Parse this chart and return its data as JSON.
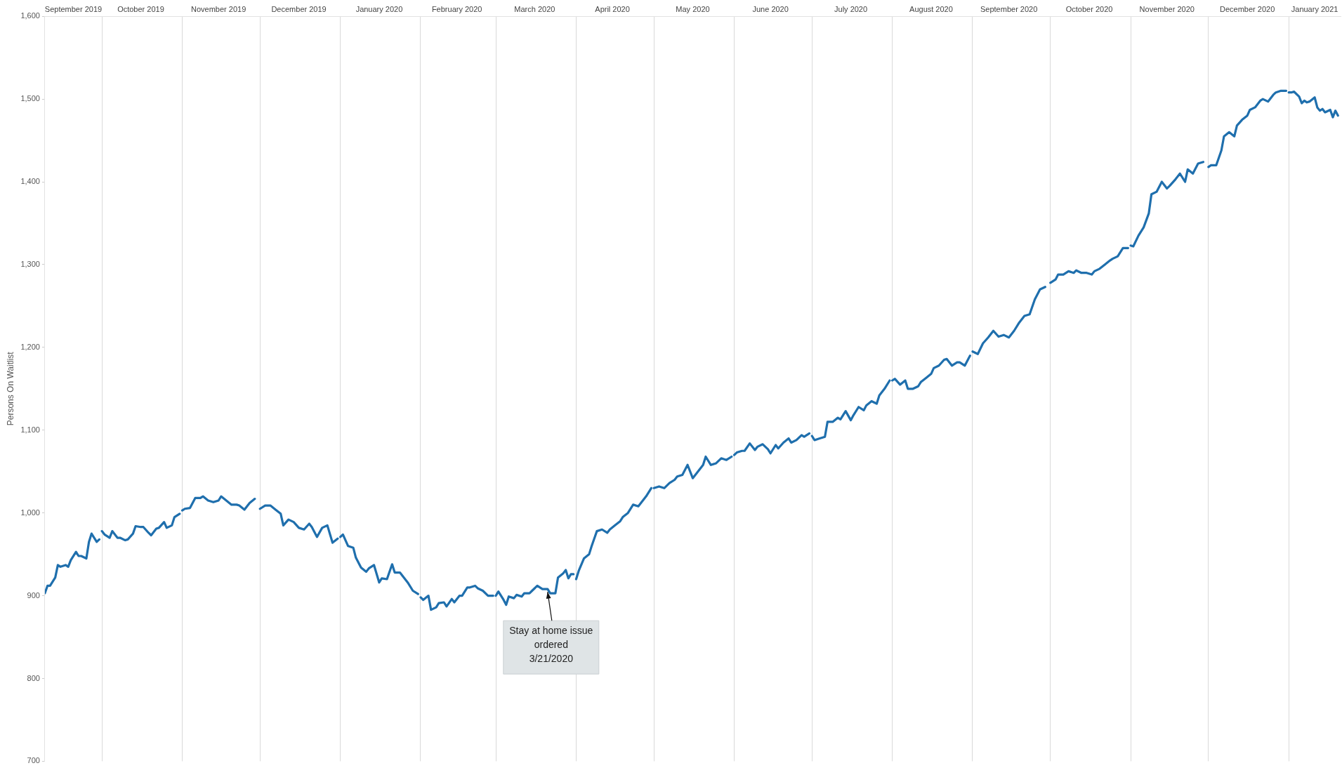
{
  "chart_data": {
    "type": "line",
    "ylabel": "Persons On Waitlist",
    "xlim": [
      "2019-09-09",
      "2021-01-21"
    ],
    "ylim": [
      700,
      1600
    ],
    "yticks": [
      700,
      800,
      900,
      {
        "value": 1000,
        "label": "1,000"
      },
      {
        "value": 1100,
        "label": "1,100"
      },
      {
        "value": 1200,
        "label": "1,200"
      },
      {
        "value": 1300,
        "label": "1,300"
      },
      {
        "value": 1400,
        "label": "1,400"
      },
      {
        "value": 1500,
        "label": "1,500"
      },
      {
        "value": 1600,
        "label": "1,600"
      }
    ],
    "xticks": [
      {
        "value": "2019-09-20",
        "label": "September 2019"
      },
      {
        "value": "2019-10-01",
        "label": null
      },
      {
        "value": "2019-10-16",
        "label": "October 2019"
      },
      {
        "value": "2019-11-01",
        "label": null
      },
      {
        "value": "2019-11-15",
        "label": "November 2019"
      },
      {
        "value": "2019-12-01",
        "label": null
      },
      {
        "value": "2019-12-16",
        "label": "December 2019"
      },
      {
        "value": "2020-01-01",
        "label": null
      },
      {
        "value": "2020-01-16",
        "label": "January 2020"
      },
      {
        "value": "2020-02-01",
        "label": null
      },
      {
        "value": "2020-02-15",
        "label": "February 2020"
      },
      {
        "value": "2020-03-01",
        "label": null
      },
      {
        "value": "2020-03-16",
        "label": "March 2020"
      },
      {
        "value": "2020-04-01",
        "label": null
      },
      {
        "value": "2020-04-15",
        "label": "April 2020"
      },
      {
        "value": "2020-05-01",
        "label": null
      },
      {
        "value": "2020-05-16",
        "label": "May 2020"
      },
      {
        "value": "2020-06-01",
        "label": null
      },
      {
        "value": "2020-06-15",
        "label": "June 2020"
      },
      {
        "value": "2020-07-01",
        "label": null
      },
      {
        "value": "2020-07-16",
        "label": "July 2020"
      },
      {
        "value": "2020-08-01",
        "label": null
      },
      {
        "value": "2020-08-16",
        "label": "August 2020"
      },
      {
        "value": "2020-09-01",
        "label": null
      },
      {
        "value": "2020-09-15",
        "label": "September 2020"
      },
      {
        "value": "2020-10-01",
        "label": null
      },
      {
        "value": "2020-10-16",
        "label": "October 2020"
      },
      {
        "value": "2020-11-01",
        "label": null
      },
      {
        "value": "2020-11-15",
        "label": "November 2020"
      },
      {
        "value": "2020-12-01",
        "label": null
      },
      {
        "value": "2020-12-16",
        "label": "December 2020"
      },
      {
        "value": "2021-01-01",
        "label": null
      },
      {
        "value": "2021-01-11",
        "label": "January 2021"
      }
    ],
    "grid": "x",
    "line_style": "solid",
    "marker": "none",
    "series": [
      {
        "color": "#1f6fad",
        "x": [
          "2019-09-09",
          "2019-09-10",
          "2019-09-11",
          "2019-09-13",
          "2019-09-14",
          "2019-09-15",
          "2019-09-17",
          "2019-09-18",
          "2019-09-19",
          "2019-09-21",
          "2019-09-22",
          "2019-09-23",
          "2019-09-25",
          "2019-09-26",
          "2019-09-27",
          "2019-09-29",
          "2019-09-30",
          "2019-09-30T20:00",
          "2019-10-01",
          "2019-10-02",
          "2019-10-04",
          "2019-10-05",
          "2019-10-07",
          "2019-10-08",
          "2019-10-10",
          "2019-10-11",
          "2019-10-13",
          "2019-10-14",
          "2019-10-16",
          "2019-10-17",
          "2019-10-19",
          "2019-10-20",
          "2019-10-22",
          "2019-10-23",
          "2019-10-25",
          "2019-10-26",
          "2019-10-28",
          "2019-10-29",
          "2019-10-31",
          "2019-10-31T20:00",
          "2019-11-01",
          "2019-11-02",
          "2019-11-04",
          "2019-11-06",
          "2019-11-08",
          "2019-11-09",
          "2019-11-11",
          "2019-11-13",
          "2019-11-15",
          "2019-11-16",
          "2019-11-18",
          "2019-11-20",
          "2019-11-22",
          "2019-11-23",
          "2019-11-25",
          "2019-11-27",
          "2019-11-29",
          "2019-11-30T20:00",
          "2019-12-01",
          "2019-12-03",
          "2019-12-05",
          "2019-12-07",
          "2019-12-09",
          "2019-12-10",
          "2019-12-12",
          "2019-12-14",
          "2019-12-16",
          "2019-12-18",
          "2019-12-20",
          "2019-12-21",
          "2019-12-23",
          "2019-12-25",
          "2019-12-27",
          "2019-12-29",
          "2019-12-31",
          "2019-12-31T20:00",
          "2020-01-01",
          "2020-01-02",
          "2020-01-04",
          "2020-01-06",
          "2020-01-07",
          "2020-01-09",
          "2020-01-11",
          "2020-01-12",
          "2020-01-14",
          "2020-01-16",
          "2020-01-17",
          "2020-01-19",
          "2020-01-21",
          "2020-01-22",
          "2020-01-24",
          "2020-01-26",
          "2020-01-27",
          "2020-01-29",
          "2020-01-31",
          "2020-01-31T20:00",
          "2020-02-01",
          "2020-02-02",
          "2020-02-04",
          "2020-02-05",
          "2020-02-07",
          "2020-02-08",
          "2020-02-10",
          "2020-02-11",
          "2020-02-13",
          "2020-02-14",
          "2020-02-16",
          "2020-02-17",
          "2020-02-19",
          "2020-02-20",
          "2020-02-22",
          "2020-02-23",
          "2020-02-25",
          "2020-02-27",
          "2020-02-29",
          "2020-02-29T20:00",
          "2020-03-01",
          "2020-03-02",
          "2020-03-04",
          "2020-03-05",
          "2020-03-06",
          "2020-03-08",
          "2020-03-09",
          "2020-03-11",
          "2020-03-12",
          "2020-03-14",
          "2020-03-15",
          "2020-03-17",
          "2020-03-19",
          "2020-03-21",
          "2020-03-22",
          "2020-03-24",
          "2020-03-25",
          "2020-03-27",
          "2020-03-28",
          "2020-03-29",
          "2020-03-30",
          "2020-03-31",
          "2020-03-31T20:00",
          "2020-04-01",
          "2020-04-02",
          "2020-04-04",
          "2020-04-06",
          "2020-04-07",
          "2020-04-09",
          "2020-04-11",
          "2020-04-13",
          "2020-04-14",
          "2020-04-16",
          "2020-04-18",
          "2020-04-19",
          "2020-04-21",
          "2020-04-23",
          "2020-04-25",
          "2020-04-26",
          "2020-04-28",
          "2020-04-30",
          "2020-04-30T20:00",
          "2020-05-01",
          "2020-05-03",
          "2020-05-05",
          "2020-05-07",
          "2020-05-09",
          "2020-05-10",
          "2020-05-12",
          "2020-05-14",
          "2020-05-16",
          "2020-05-18",
          "2020-05-20",
          "2020-05-21",
          "2020-05-23",
          "2020-05-25",
          "2020-05-27",
          "2020-05-29",
          "2020-05-31",
          "2020-05-31T20:00",
          "2020-06-01",
          "2020-06-02",
          "2020-06-04",
          "2020-06-05",
          "2020-06-07",
          "2020-06-09",
          "2020-06-10",
          "2020-06-12",
          "2020-06-14",
          "2020-06-15",
          "2020-06-17",
          "2020-06-18",
          "2020-06-20",
          "2020-06-22",
          "2020-06-23",
          "2020-06-25",
          "2020-06-27",
          "2020-06-28",
          "2020-06-30",
          "2020-06-30T20:00",
          "2020-07-01",
          "2020-07-02",
          "2020-07-04",
          "2020-07-06",
          "2020-07-07",
          "2020-07-09",
          "2020-07-11",
          "2020-07-12",
          "2020-07-14",
          "2020-07-16",
          "2020-07-17",
          "2020-07-19",
          "2020-07-21",
          "2020-07-22",
          "2020-07-24",
          "2020-07-26",
          "2020-07-27",
          "2020-07-29",
          "2020-07-31",
          "2020-07-31T20:00",
          "2020-08-01",
          "2020-08-02",
          "2020-08-04",
          "2020-08-06",
          "2020-08-07",
          "2020-08-09",
          "2020-08-11",
          "2020-08-12",
          "2020-08-14",
          "2020-08-16",
          "2020-08-17",
          "2020-08-19",
          "2020-08-21",
          "2020-08-22",
          "2020-08-24",
          "2020-08-26",
          "2020-08-27",
          "2020-08-29",
          "2020-08-31",
          "2020-08-31T20:00",
          "2020-09-01",
          "2020-09-03",
          "2020-09-05",
          "2020-09-07",
          "2020-09-09",
          "2020-09-11",
          "2020-09-13",
          "2020-09-15",
          "2020-09-17",
          "2020-09-19",
          "2020-09-21",
          "2020-09-23",
          "2020-09-25",
          "2020-09-27",
          "2020-09-29",
          "2020-09-30T20:00",
          "2020-10-01",
          "2020-10-03",
          "2020-10-04",
          "2020-10-06",
          "2020-10-08",
          "2020-10-10",
          "2020-10-11",
          "2020-10-13",
          "2020-10-15",
          "2020-10-17",
          "2020-10-18",
          "2020-10-20",
          "2020-10-22",
          "2020-10-24",
          "2020-10-25",
          "2020-10-27",
          "2020-10-29",
          "2020-10-31",
          "2020-10-31T20:00",
          "2020-11-01",
          "2020-11-02",
          "2020-11-04",
          "2020-11-06",
          "2020-11-08",
          "2020-11-09",
          "2020-11-11",
          "2020-11-13",
          "2020-11-15",
          "2020-11-16",
          "2020-11-18",
          "2020-11-20",
          "2020-11-22",
          "2020-11-23",
          "2020-11-25",
          "2020-11-27",
          "2020-11-29",
          "2020-11-30T20:00",
          "2020-12-01",
          "2020-12-02",
          "2020-12-04",
          "2020-12-06",
          "2020-12-07",
          "2020-12-09",
          "2020-12-11",
          "2020-12-12",
          "2020-12-14",
          "2020-12-16",
          "2020-12-17",
          "2020-12-19",
          "2020-12-21",
          "2020-12-22",
          "2020-12-24",
          "2020-12-26",
          "2020-12-27",
          "2020-12-29",
          "2020-12-31",
          "2020-12-31T20:00",
          "2021-01-01",
          "2021-01-02",
          "2021-01-03",
          "2021-01-05",
          "2021-01-06",
          "2021-01-07",
          "2021-01-08",
          "2021-01-09",
          "2021-01-11",
          "2021-01-12",
          "2021-01-13",
          "2021-01-14",
          "2021-01-15",
          "2021-01-17",
          "2021-01-18",
          "2021-01-19",
          "2021-01-20"
        ],
        "values": [
          903,
          912,
          912,
          922,
          937,
          935,
          937,
          935,
          943,
          953,
          948,
          948,
          945,
          965,
          975,
          965,
          968,
          null,
          978,
          974,
          970,
          978,
          970,
          970,
          967,
          968,
          975,
          984,
          983,
          983,
          976,
          973,
          981,
          982,
          989,
          982,
          985,
          995,
          999,
          null,
          1003,
          1005,
          1006,
          1018,
          1018,
          1020,
          1015,
          1013,
          1015,
          1020,
          1015,
          1010,
          1010,
          1009,
          1004,
          1012,
          1017,
          null,
          1005,
          1009,
          1009,
          1004,
          999,
          985,
          992,
          989,
          982,
          980,
          987,
          983,
          971,
          982,
          985,
          964,
          969,
          null,
          971,
          974,
          960,
          958,
          946,
          934,
          929,
          933,
          937,
          916,
          921,
          920,
          938,
          928,
          928,
          920,
          916,
          906,
          902,
          null,
          898,
          895,
          900,
          883,
          886,
          891,
          892,
          887,
          896,
          892,
          900,
          900,
          910,
          910,
          912,
          909,
          906,
          900,
          900,
          null,
          900,
          905,
          895,
          889,
          899,
          897,
          901,
          899,
          903,
          903,
          906,
          912,
          908,
          908,
          903,
          903,
          922,
          927,
          931,
          921,
          926,
          926,
          null,
          920,
          930,
          945,
          950,
          960,
          978,
          980,
          976,
          980,
          985,
          990,
          995,
          1000,
          1010,
          1008,
          1012,
          1020,
          1030,
          null,
          1030,
          1032,
          1030,
          1036,
          1040,
          1044,
          1046,
          1058,
          1042,
          1050,
          1058,
          1068,
          1058,
          1060,
          1066,
          1064,
          1068,
          null,
          1070,
          1073,
          1075,
          1075,
          1084,
          1076,
          1080,
          1083,
          1077,
          1072,
          1082,
          1078,
          1085,
          1090,
          1085,
          1088,
          1094,
          1092,
          1096,
          null,
          1093,
          1088,
          1090,
          1092,
          1110,
          1110,
          1115,
          1113,
          1123,
          1112,
          1118,
          1128,
          1124,
          1130,
          1135,
          1132,
          1142,
          1150,
          1160,
          null,
          1160,
          1162,
          1155,
          1160,
          1150,
          1150,
          1153,
          1158,
          1163,
          1168,
          1175,
          1178,
          1185,
          1186,
          1178,
          1182,
          1182,
          1178,
          1190,
          null,
          1195,
          1192,
          1205,
          1212,
          1220,
          1213,
          1215,
          1212,
          1220,
          1230,
          1238,
          1240,
          1258,
          1270,
          1273,
          null,
          1278,
          1282,
          1288,
          1288,
          1292,
          1290,
          1293,
          1290,
          1290,
          1288,
          1292,
          1295,
          1300,
          1305,
          1307,
          1310,
          1320,
          1320,
          null,
          1323,
          1322,
          1335,
          1345,
          1362,
          1385,
          1388,
          1400,
          1392,
          1395,
          1402,
          1410,
          1400,
          1415,
          1410,
          1422,
          1424,
          null,
          1418,
          1420,
          1420,
          1438,
          1455,
          1460,
          1455,
          1468,
          1475,
          1480,
          1487,
          1490,
          1498,
          1500,
          1497,
          1505,
          1508,
          1510,
          1510,
          null,
          1508,
          1508,
          1509,
          1503,
          1495,
          1498,
          1496,
          1497,
          1502,
          1490,
          1486,
          1488,
          1484,
          1487,
          1478,
          1486,
          1480
        ]
      }
    ],
    "annotations": [
      {
        "text": "Stay at home issue\nordered\n3/21/2020",
        "x": "2020-03-21",
        "y": 908
      }
    ]
  }
}
